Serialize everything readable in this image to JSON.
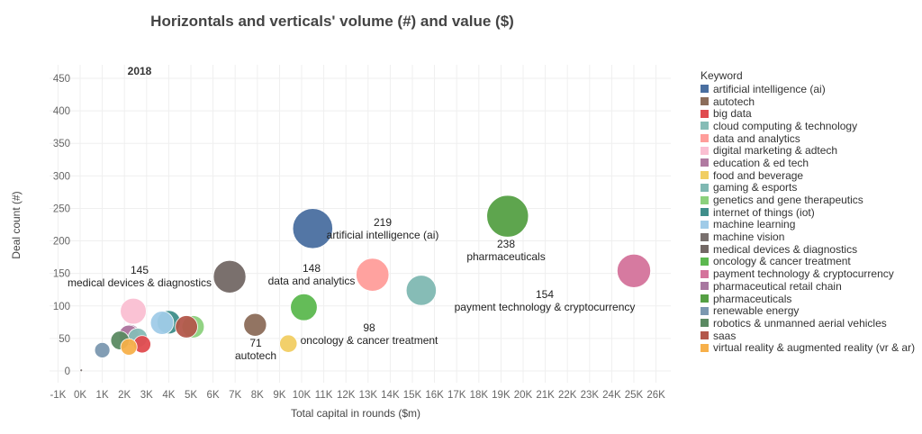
{
  "chart_data": {
    "type": "scatter",
    "title": "Horizontals and verticals' volume (#) and value ($)",
    "subtitle": "2018",
    "xlabel": "Total capital in rounds ($m)",
    "ylabel": "Deal count (#)",
    "xlim": [
      -1000,
      26500
    ],
    "ylim": [
      -15,
      480
    ],
    "xticks": [
      -1000,
      0,
      1000,
      2000,
      3000,
      4000,
      5000,
      6000,
      7000,
      8000,
      9000,
      10000,
      11000,
      12000,
      13000,
      14000,
      15000,
      16000,
      17000,
      18000,
      19000,
      20000,
      21000,
      22000,
      23000,
      24000,
      25000,
      26000
    ],
    "xtick_labels": [
      "-1K",
      "0K",
      "1K",
      "2K",
      "3K",
      "4K",
      "5K",
      "6K",
      "7K",
      "8K",
      "9K",
      "10K",
      "11K",
      "12K",
      "13K",
      "14K",
      "15K",
      "16K",
      "17K",
      "18K",
      "19K",
      "20K",
      "21K",
      "22K",
      "23K",
      "24K",
      "25K",
      "26K"
    ],
    "yticks": [
      0,
      50,
      100,
      150,
      200,
      250,
      300,
      350,
      400,
      450
    ],
    "ytick_labels": [
      "0",
      "50",
      "100",
      "150",
      "200",
      "250",
      "300",
      "350",
      "400",
      "450"
    ],
    "grid": true,
    "legend_title": "Keyword",
    "legend_position": "right",
    "size_encoding": "deal count",
    "series": [
      {
        "name": "artificial intelligence (ai)",
        "color": "#4a6fa0",
        "x": 10500,
        "y": 219
      },
      {
        "name": "autotech",
        "color": "#8c6d5a",
        "x": 7900,
        "y": 71
      },
      {
        "name": "big data",
        "color": "#e04b4f",
        "x": 2800,
        "y": 41
      },
      {
        "name": "cloud computing & technology",
        "color": "#86bcb6",
        "x": 2600,
        "y": 51
      },
      {
        "name": "data and analytics",
        "color": "#ff9d9a",
        "x": 13200,
        "y": 148
      },
      {
        "name": "digital marketing & adtech",
        "color": "#fabfd2",
        "x": 2400,
        "y": 92
      },
      {
        "name": "education & ed tech",
        "color": "#b07aa1",
        "x": 2200,
        "y": 55
      },
      {
        "name": "food and beverage",
        "color": "#f1ce63",
        "x": 9400,
        "y": 42
      },
      {
        "name": "gaming & esports",
        "color": "#7fb8b2",
        "x": 15400,
        "y": 124
      },
      {
        "name": "genetics and gene therapeutics",
        "color": "#8cd17d",
        "x": 5100,
        "y": 68
      },
      {
        "name": "internet of things (iot)",
        "color": "#3f8e8a",
        "x": 4000,
        "y": 75
      },
      {
        "name": "machine learning",
        "color": "#a0cbe8",
        "x": 3700,
        "y": 74
      },
      {
        "name": "machine vision",
        "color": "#79706e",
        "x": 50,
        "y": 1
      },
      {
        "name": "medical devices & diagnostics",
        "color": "#736865",
        "x": 6750,
        "y": 145
      },
      {
        "name": "oncology & cancer treatment",
        "color": "#5cb84f",
        "x": 10100,
        "y": 98
      },
      {
        "name": "payment technology & cryptocurrency",
        "color": "#d4739b",
        "x": 25000,
        "y": 154
      },
      {
        "name": "pharmaceutical retail chain",
        "color": "#a877a0",
        "x": 2250,
        "y": 56
      },
      {
        "name": "pharmaceuticals",
        "color": "#55a044",
        "x": 19300,
        "y": 238
      },
      {
        "name": "renewable energy",
        "color": "#7b98b0",
        "x": 1000,
        "y": 32
      },
      {
        "name": "robotics & unmanned aerial vehicles",
        "color": "#5b8a62",
        "x": 1800,
        "y": 47
      },
      {
        "name": "saas",
        "color": "#b3574b",
        "x": 4800,
        "y": 68
      },
      {
        "name": "virtual reality & augmented reality (vr & ar)",
        "color": "#f7b04a",
        "x": 2200,
        "y": 37
      }
    ],
    "annotations": [
      {
        "value": "219",
        "label": "artificial intelligence (ai)"
      },
      {
        "value": "238",
        "label": "pharmaceuticals"
      },
      {
        "value": "154",
        "label": "payment technology & cryptocurrency"
      },
      {
        "value": "145",
        "label": "medical devices & diagnostics"
      },
      {
        "value": "148",
        "label": "data and analytics"
      },
      {
        "value": "98",
        "label": "oncology & cancer treatment"
      },
      {
        "value": "71",
        "label": "autotech"
      }
    ]
  }
}
